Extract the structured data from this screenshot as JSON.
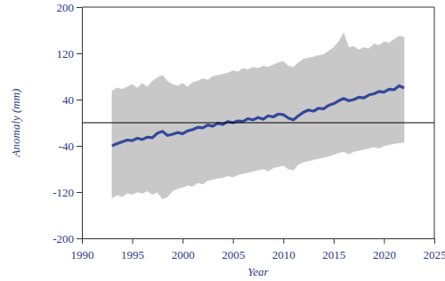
{
  "chart_data": {
    "type": "line",
    "x_label": "Year",
    "y_label": "Anomaly (mm)",
    "x": [
      1993,
      1993.5,
      1994,
      1994.5,
      1995,
      1995.5,
      1996,
      1996.5,
      1997,
      1997.5,
      1998,
      1998.5,
      1999,
      1999.5,
      2000,
      2000.5,
      2001,
      2001.5,
      2002,
      2002.5,
      2003,
      2003.5,
      2004,
      2004.5,
      2005,
      2005.5,
      2006,
      2006.5,
      2007,
      2007.5,
      2008,
      2008.5,
      2009,
      2009.5,
      2010,
      2010.5,
      2011,
      2011.5,
      2012,
      2012.5,
      2013,
      2013.5,
      2014,
      2014.5,
      2015,
      2015.5,
      2016,
      2016.5,
      2017,
      2017.5,
      2018,
      2018.5,
      2019,
      2019.5,
      2020,
      2020.5,
      2021,
      2021.5,
      2022
    ],
    "series": [
      {
        "type": "area",
        "color": "#c8c8c8",
        "values": [
          55,
          60,
          58,
          62,
          66,
          60,
          68,
          62,
          72,
          78,
          82,
          72,
          66,
          64,
          68,
          62,
          70,
          72,
          76,
          74,
          80,
          82,
          84,
          86,
          90,
          88,
          94,
          92,
          96,
          94,
          98,
          96,
          100,
          104,
          106,
          98,
          96,
          104,
          110,
          112,
          114,
          116,
          118,
          124,
          130,
          140,
          155,
          130,
          132,
          126,
          130,
          128,
          136,
          134,
          140,
          138,
          144,
          150,
          148
        ],
        "lower": [
          -130,
          -125,
          -128,
          -122,
          -124,
          -120,
          -122,
          -118,
          -124,
          -120,
          -132,
          -128,
          -118,
          -114,
          -112,
          -108,
          -110,
          -104,
          -106,
          -100,
          -98,
          -96,
          -95,
          -92,
          -94,
          -90,
          -88,
          -86,
          -84,
          -82,
          -80,
          -84,
          -78,
          -76,
          -74,
          -80,
          -82,
          -72,
          -68,
          -66,
          -64,
          -62,
          -60,
          -58,
          -55,
          -52,
          -50,
          -54,
          -50,
          -48,
          -46,
          -44,
          -42,
          -44,
          -40,
          -38,
          -36,
          -35,
          -34
        ]
      },
      {
        "type": "line",
        "color": "#34489a",
        "values": [
          -40,
          -36,
          -33,
          -30,
          -31,
          -27,
          -29,
          -25,
          -26,
          -18,
          -15,
          -22,
          -20,
          -17,
          -19,
          -14,
          -12,
          -8,
          -9,
          -4,
          -6,
          -1,
          -3,
          2,
          0,
          3,
          2,
          7,
          5,
          9,
          6,
          12,
          10,
          15,
          14,
          8,
          5,
          12,
          18,
          22,
          20,
          25,
          24,
          30,
          33,
          38,
          42,
          38,
          40,
          44,
          43,
          48,
          50,
          54,
          53,
          58,
          57,
          64,
          60
        ]
      }
    ],
    "reference_line": 0,
    "xlim": [
      1990,
      2025
    ],
    "xticks": [
      1990,
      1995,
      2000,
      2005,
      2010,
      2015,
      2020,
      2025
    ],
    "ylim": [
      -200,
      200
    ],
    "yticks": [
      -200,
      -120,
      -40,
      40,
      120,
      200
    ],
    "grid": false
  }
}
